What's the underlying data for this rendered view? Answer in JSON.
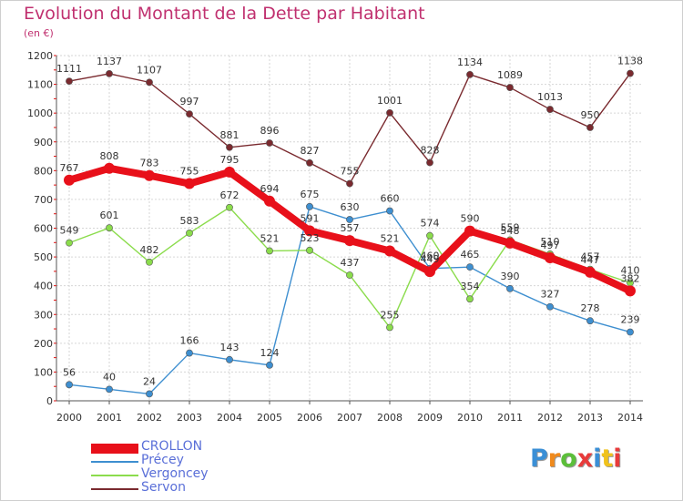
{
  "header": {
    "title": "Evolution du Montant de la Dette par Habitant",
    "subtitle": "(en €)"
  },
  "logo": {
    "text": "Proxiti",
    "colors": [
      "#3a8fd6",
      "#f08a1c",
      "#5cbf3a",
      "#e83b3b",
      "#3a8fd6",
      "#f0c21c",
      "#e83b3b"
    ]
  },
  "chart_data": {
    "type": "line",
    "x": [
      "2000",
      "2001",
      "2002",
      "2003",
      "2004",
      "2005",
      "2006",
      "2007",
      "2008",
      "2009",
      "2010",
      "2011",
      "2012",
      "2013",
      "2014"
    ],
    "ylim": [
      0,
      1200
    ],
    "yticks": [
      0,
      100,
      200,
      300,
      400,
      500,
      600,
      700,
      800,
      900,
      1000,
      1100,
      1200
    ],
    "grid": true,
    "legend": "bottom-left",
    "series": [
      {
        "name": "CROLLON",
        "color": "#e8101a",
        "values": [
          767,
          808,
          783,
          755,
          795,
          694,
          591,
          557,
          521,
          449,
          590,
          548,
          497,
          447,
          382
        ],
        "labels": [
          "767",
          "808",
          "783",
          "755",
          "795",
          "694",
          "591",
          "557",
          "521",
          "449",
          "590",
          "548",
          "497",
          "447",
          "382"
        ]
      },
      {
        "name": "Précey",
        "color": "#3e8fd0",
        "values": [
          56,
          40,
          24,
          166,
          143,
          124,
          675,
          630,
          660,
          460,
          465,
          390,
          327,
          278,
          239
        ],
        "labels": [
          "56",
          "40",
          "24",
          "166",
          "143",
          "124",
          "675",
          "630",
          "660",
          "460",
          "465",
          "390",
          "327",
          "278",
          "239"
        ]
      },
      {
        "name": "Vergoncey",
        "color": "#8bdc4c",
        "values": [
          549,
          601,
          482,
          583,
          672,
          521,
          523,
          437,
          255,
          574,
          354,
          559,
          510,
          457,
          410
        ],
        "labels": [
          "549",
          "601",
          "482",
          "583",
          "672",
          "521",
          "523",
          "437",
          "255",
          "574",
          "354",
          "559",
          "510",
          "457",
          "410"
        ]
      },
      {
        "name": "Servon",
        "color": "#7a2a2f",
        "values": [
          1111,
          1137,
          1107,
          997,
          881,
          896,
          827,
          755,
          1001,
          828,
          1134,
          1089,
          1013,
          950,
          1138
        ],
        "labels": [
          "1111",
          "1137",
          "1107",
          "997",
          "881",
          "896",
          "827",
          "755",
          "1001",
          "828",
          "1134",
          "1089",
          "1013",
          "950",
          "1138"
        ]
      }
    ]
  }
}
